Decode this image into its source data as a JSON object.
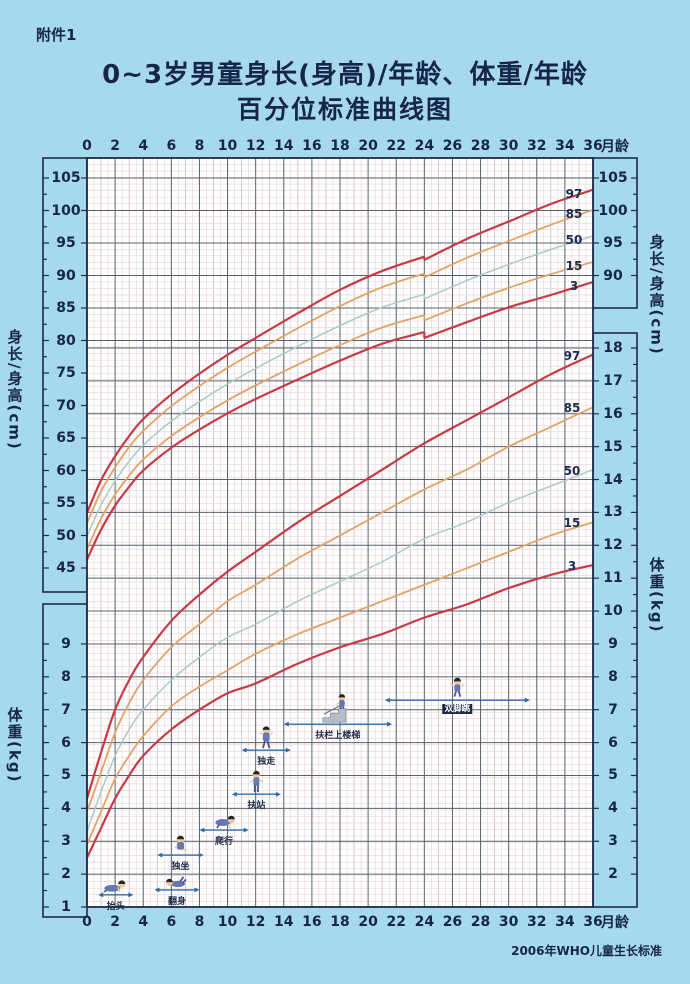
{
  "page": {
    "attachment_label": "附件1",
    "title_line1": "0~3岁男童身长(身高)/年龄、体重/年龄",
    "title_line2": "百分位标准曲线图",
    "footer": "2006年WHO儿童生长标准"
  },
  "colors": {
    "background": "#a6d8ee",
    "plot_background": "#ffffff",
    "frame": "#1d2b47",
    "major_grid": "#59606f",
    "minor_grid": "#e6d2d5",
    "mid_grid": "#cdb9be",
    "p97_p3_curve": "#c73a45",
    "p85_p15_curve": "#e3a368",
    "p50_curve": "#a9cbc4",
    "arrow": "#2e6da4",
    "text": "#16254a"
  },
  "axes": {
    "month_unit": "月龄",
    "top_months": {
      "ticks": [
        "0",
        "2",
        "4",
        "6",
        "8",
        "10",
        "12",
        "14",
        "16",
        "18",
        "20",
        "22",
        "24",
        "26",
        "28",
        "30",
        "32",
        "34",
        "36"
      ]
    },
    "bottom_months": {
      "ticks": [
        "0",
        "2",
        "4",
        "6",
        "8",
        "10",
        "12",
        "14",
        "16",
        "18",
        "20",
        "22",
        "24",
        "26",
        "28",
        "30",
        "32",
        "34",
        "36"
      ]
    },
    "left_height": {
      "title": "身长/身高(cm)",
      "ticks": [
        "105",
        "100",
        "95",
        "90",
        "85",
        "80",
        "75",
        "70",
        "65",
        "60",
        "55",
        "50",
        "45"
      ]
    },
    "left_weight": {
      "title": "体重(kg)",
      "ticks": [
        "9",
        "8",
        "7",
        "6",
        "5",
        "4",
        "3",
        "2",
        "1"
      ]
    },
    "right_height": {
      "title": "身长/身高(cm)",
      "ticks": [
        "105",
        "100",
        "95",
        "90"
      ]
    },
    "right_weight": {
      "title": "体重(kg)",
      "ticks": [
        "18",
        "17",
        "16",
        "15",
        "14",
        "13",
        "12",
        "11",
        "10",
        "9",
        "8",
        "7",
        "6",
        "5",
        "4",
        "3",
        "2"
      ]
    }
  },
  "milestones": [
    {
      "label": "抬头",
      "from_month": 0.8,
      "to_month": 3.3,
      "at_kg": 1.37,
      "pose": "lift-head"
    },
    {
      "label": "翻身",
      "from_month": 4.8,
      "to_month": 8.0,
      "at_kg": 1.52,
      "pose": "roll-over"
    },
    {
      "label": "独坐",
      "from_month": 5.0,
      "to_month": 8.3,
      "at_kg": 2.58,
      "pose": "sit-alone"
    },
    {
      "label": "爬行",
      "from_month": 8.0,
      "to_month": 11.5,
      "at_kg": 3.34,
      "pose": "crawl"
    },
    {
      "label": "扶站",
      "from_month": 10.3,
      "to_month": 13.8,
      "at_kg": 4.43,
      "pose": "stand-support"
    },
    {
      "label": "独走",
      "from_month": 11.0,
      "to_month": 14.5,
      "at_kg": 5.77,
      "pose": "walk-alone"
    },
    {
      "label": "扶栏上楼梯",
      "from_month": 14.0,
      "to_month": 21.7,
      "at_kg": 6.56,
      "pose": "climb-stairs"
    },
    {
      "label": "双脚跳",
      "from_month": 21.2,
      "to_month": 31.5,
      "at_kg": 7.29,
      "pose": "jump"
    }
  ],
  "chart_data": {
    "type": "line",
    "title": "0~3岁男童身长(身高)/年龄、体重/年龄百分位标准曲线图",
    "xlabel": "月龄",
    "x_range": [
      0,
      36
    ],
    "x_tick_step": 2,
    "grid": true,
    "legend_position": "curve-end-right",
    "percentiles": [
      "97",
      "85",
      "50",
      "15",
      "3"
    ],
    "panels": [
      {
        "name": "length_height_for_age",
        "ylabel": "身长/身高(cm)",
        "ylim": [
          45,
          105
        ],
        "note": "曲线在24月龄由身长转为身高，出现小幅下移",
        "x_length": [
          0,
          1,
          2,
          3,
          4,
          6,
          8,
          10,
          12,
          15,
          18,
          21,
          24
        ],
        "x_height": [
          24,
          27,
          30,
          33,
          36
        ],
        "series": [
          {
            "percentile": "97",
            "length": [
              53.5,
              58.5,
              62.2,
              65.3,
              67.9,
              71.7,
              74.9,
              77.8,
              80.4,
              84.2,
              87.8,
              90.7,
              92.9
            ],
            "height": [
              92.4,
              95.6,
              98.3,
              101.0,
              103.2
            ]
          },
          {
            "percentile": "85",
            "length": [
              51.9,
              56.8,
              60.5,
              63.6,
              66.1,
              69.9,
              73.0,
              75.8,
              78.3,
              81.9,
              85.3,
              88.2,
              90.3
            ],
            "height": [
              89.7,
              92.7,
              95.3,
              97.8,
              100.1
            ]
          },
          {
            "percentile": "50",
            "length": [
              49.9,
              54.7,
              58.4,
              61.4,
              63.9,
              67.6,
              70.6,
              73.3,
              75.7,
              79.1,
              82.3,
              85.1,
              87.1
            ],
            "height": [
              86.4,
              89.2,
              91.7,
              94.0,
              96.1
            ]
          },
          {
            "percentile": "15",
            "length": [
              47.9,
              52.6,
              56.3,
              59.2,
              61.7,
              65.3,
              68.2,
              70.8,
              73.1,
              76.3,
              79.3,
              82.0,
              83.9
            ],
            "height": [
              83.1,
              85.7,
              88.1,
              90.2,
              92.1
            ]
          },
          {
            "percentile": "3",
            "length": [
              46.3,
              50.9,
              54.6,
              57.5,
              60.0,
              63.5,
              66.3,
              68.8,
              71.0,
              74.0,
              76.9,
              79.5,
              81.3
            ],
            "height": [
              80.4,
              82.8,
              85.1,
              87.0,
              89.0
            ]
          }
        ]
      },
      {
        "name": "weight_for_age",
        "ylabel": "体重(kg)",
        "ylim": [
          1,
          18
        ],
        "x": [
          0,
          1,
          2,
          3,
          4,
          6,
          8,
          10,
          12,
          15,
          18,
          21,
          24,
          27,
          30,
          33,
          36
        ],
        "series": [
          {
            "percentile": "97",
            "values": [
              4.3,
              5.7,
              7.0,
              7.9,
              8.6,
              9.7,
              10.5,
              11.2,
              11.8,
              12.7,
              13.5,
              14.3,
              15.1,
              15.8,
              16.5,
              17.2,
              17.8
            ]
          },
          {
            "percentile": "85",
            "values": [
              3.9,
              5.1,
              6.3,
              7.2,
              7.9,
              8.9,
              9.6,
              10.3,
              10.8,
              11.6,
              12.3,
              13.0,
              13.7,
              14.3,
              15.0,
              15.6,
              16.2
            ]
          },
          {
            "percentile": "50",
            "values": [
              3.3,
              4.5,
              5.6,
              6.4,
              7.0,
              7.9,
              8.6,
              9.2,
              9.6,
              10.3,
              10.9,
              11.5,
              12.2,
              12.7,
              13.3,
              13.8,
              14.3
            ]
          },
          {
            "percentile": "15",
            "values": [
              2.9,
              3.9,
              4.9,
              5.6,
              6.2,
              7.1,
              7.7,
              8.2,
              8.7,
              9.3,
              9.8,
              10.3,
              10.8,
              11.3,
              11.8,
              12.3,
              12.7
            ]
          },
          {
            "percentile": "3",
            "values": [
              2.5,
              3.4,
              4.3,
              5.0,
              5.6,
              6.4,
              7.0,
              7.5,
              7.8,
              8.4,
              8.9,
              9.3,
              9.8,
              10.2,
              10.7,
              11.1,
              11.4
            ]
          }
        ]
      }
    ]
  }
}
